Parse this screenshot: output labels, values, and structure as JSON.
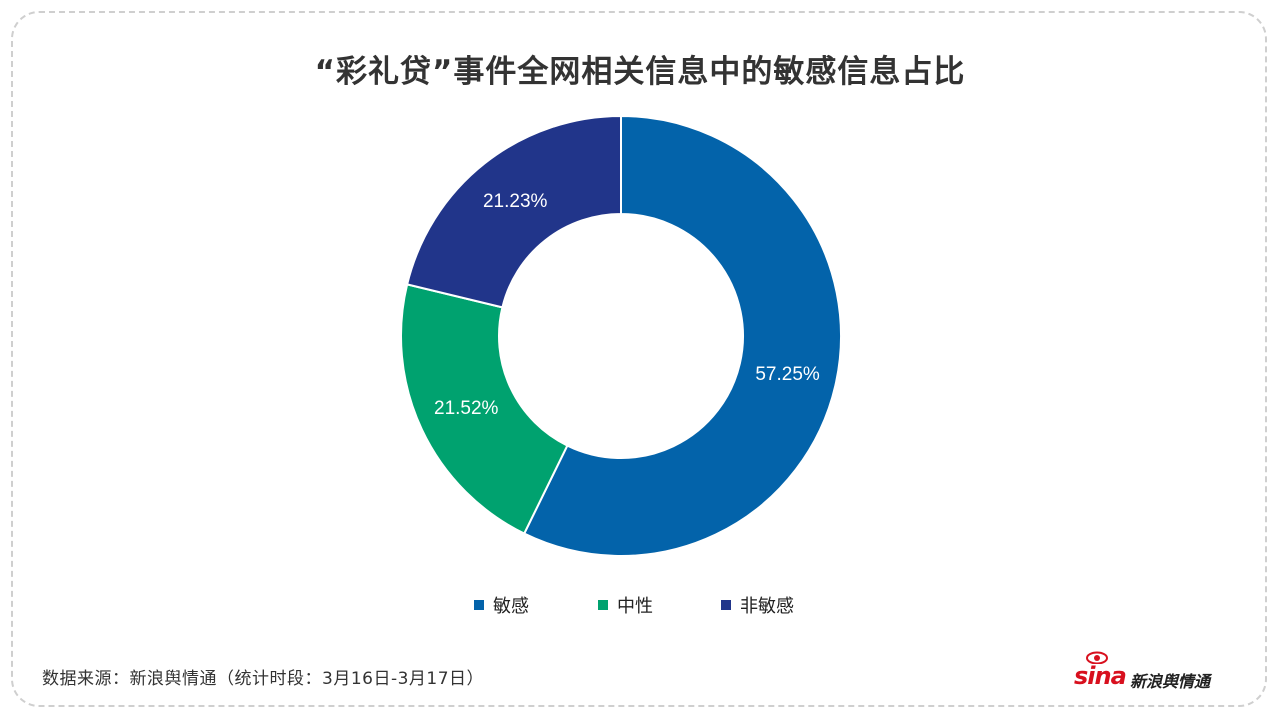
{
  "chart_data": {
    "type": "pie",
    "donut": true,
    "title": "“彩礼贷”事件全网相关信息中的敏感信息占比",
    "slices": [
      {
        "name": "敏感",
        "value": 57.25,
        "label": "57.25%",
        "color": "#0363aa"
      },
      {
        "name": "中性",
        "value": 21.52,
        "label": "21.52%",
        "color": "#00a26f"
      },
      {
        "name": "非敏感",
        "value": 21.23,
        "label": "21.23%",
        "color": "#21358a"
      }
    ],
    "legend_position": "bottom"
  },
  "source": "数据来源：新浪舆情通（统计时段：3月16日-3月17日）",
  "logo": {
    "brand": "sina",
    "text": "新浪舆情通",
    "color": "#d8101e"
  }
}
